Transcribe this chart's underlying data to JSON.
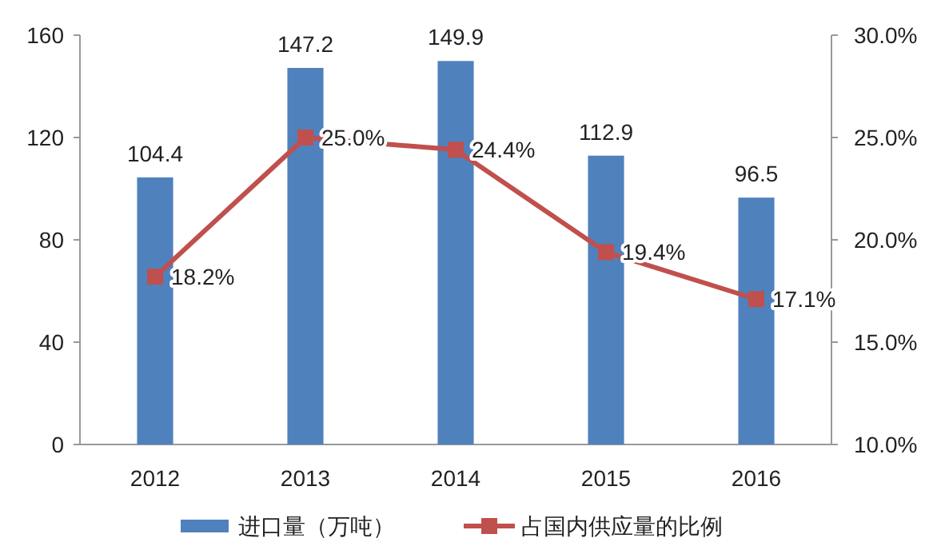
{
  "chart_data": {
    "type": "bar",
    "categories": [
      "2012",
      "2013",
      "2014",
      "2015",
      "2016"
    ],
    "series": [
      {
        "name": "进口量（万吨）",
        "color": "#4f81bd",
        "values": [
          104.4,
          147.2,
          149.9,
          112.9,
          96.5
        ],
        "value_labels": [
          "104.4",
          "147.2",
          "149.9",
          "112.9",
          "96.5"
        ]
      },
      {
        "name": "占国内供应量的比例",
        "type": "line",
        "axis": "y2",
        "color": "#c0504d",
        "marker": "square",
        "values": [
          18.2,
          25.0,
          24.4,
          19.4,
          17.1
        ],
        "value_labels": [
          "18.2%",
          "25.0%",
          "24.4%",
          "19.4%",
          "17.1%"
        ]
      }
    ],
    "ylim": [
      0,
      160
    ],
    "yticks": [
      0,
      40,
      80,
      120,
      160
    ],
    "y2lim": [
      10,
      30
    ],
    "y2ticks": [
      {
        "value": 10,
        "label": "10.0%"
      },
      {
        "value": 15,
        "label": "15.0%"
      },
      {
        "value": 20,
        "label": "20.0%"
      },
      {
        "value": 25,
        "label": "25.0%"
      },
      {
        "value": 30,
        "label": "30.0%"
      }
    ],
    "legend": "bottom"
  }
}
